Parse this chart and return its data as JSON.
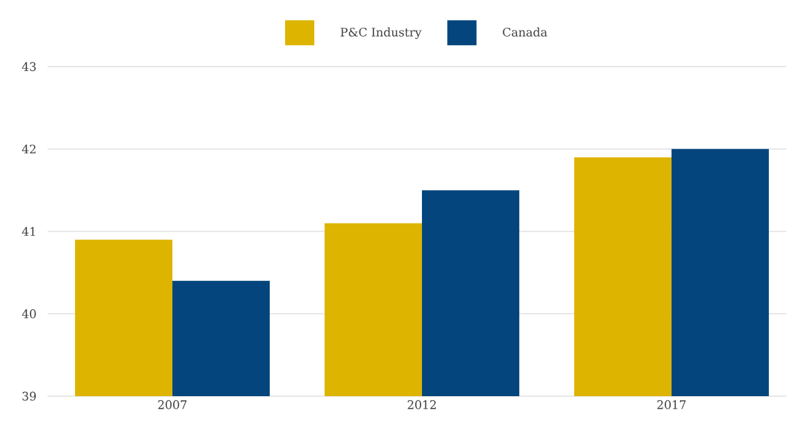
{
  "chart_data": {
    "type": "bar",
    "categories": [
      "2007",
      "2012",
      "2017"
    ],
    "series": [
      {
        "name": "P&C Industry",
        "color": "#ddb400",
        "values": [
          40.9,
          41.1,
          41.9
        ]
      },
      {
        "name": "Canada",
        "color": "#03457c",
        "values": [
          40.4,
          41.5,
          42.0
        ]
      }
    ],
    "ylim": [
      39,
      43
    ],
    "yticks": [
      39,
      40,
      41,
      42,
      43
    ],
    "grid": "y",
    "legend": "top"
  }
}
